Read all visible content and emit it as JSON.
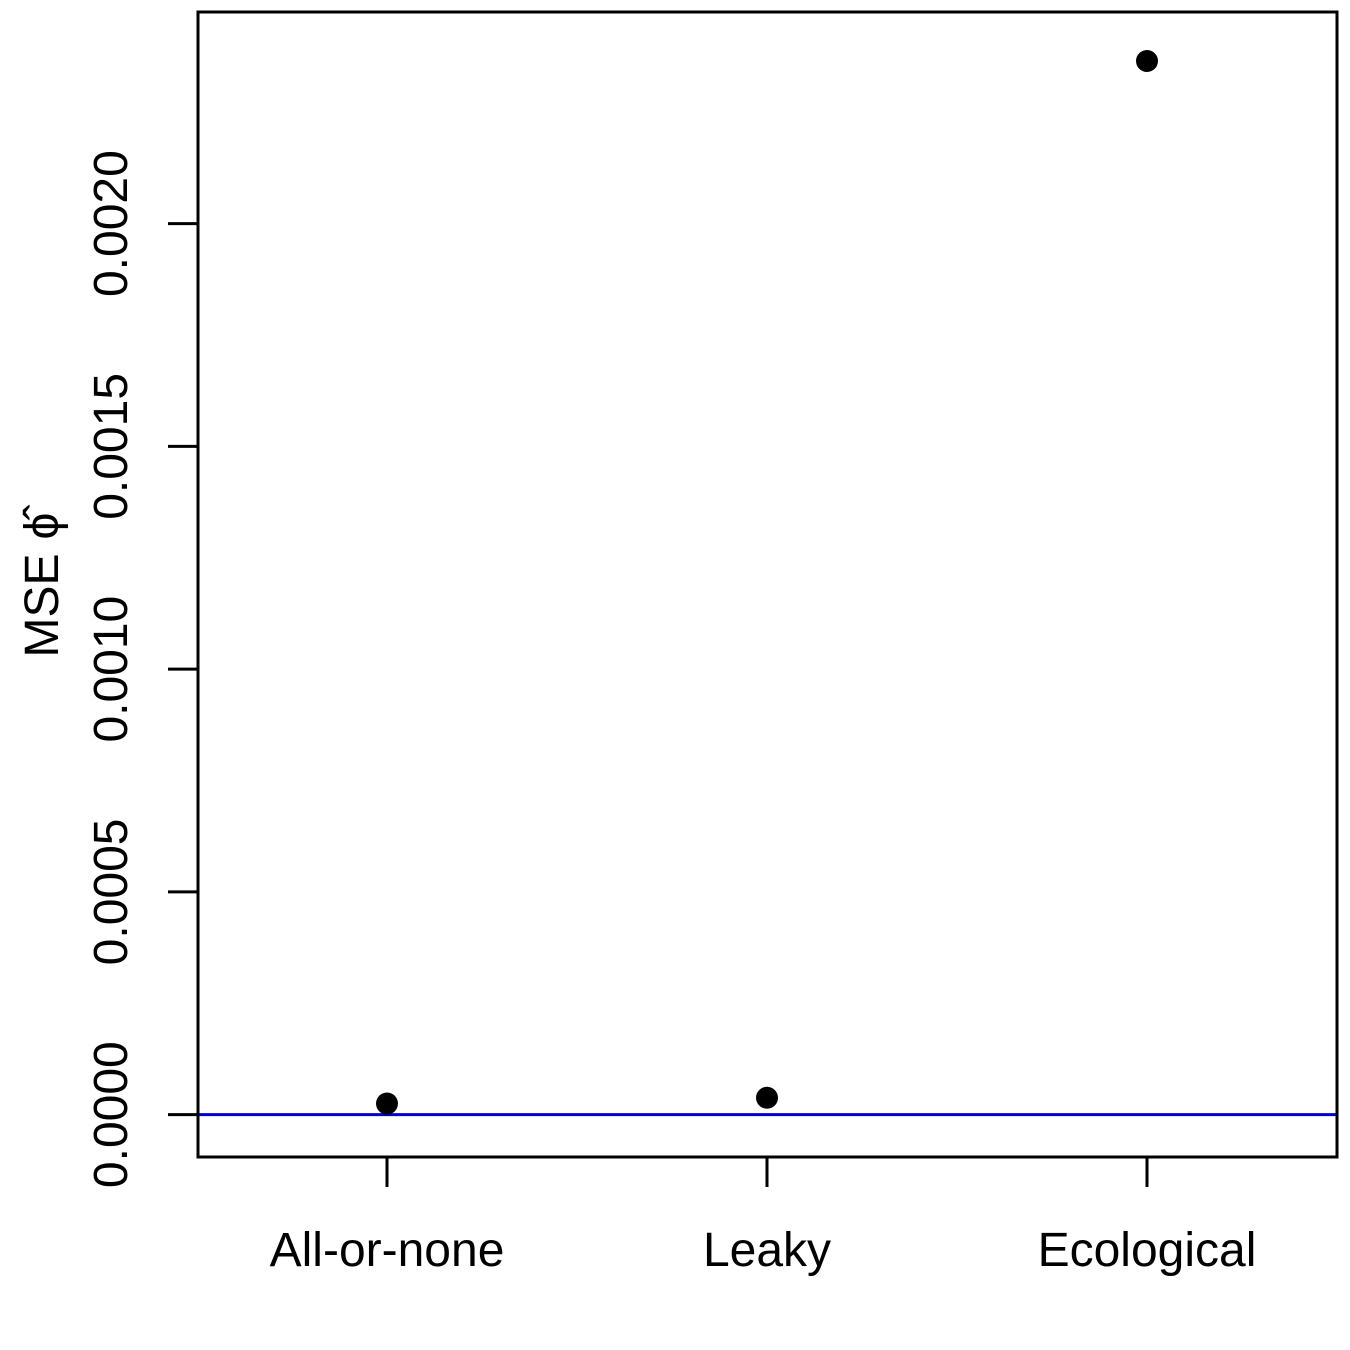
{
  "chart_data": {
    "type": "scatter",
    "title": "",
    "xlabel": "",
    "ylabel": "MSE",
    "ylabel_symbol": "ϕ̂",
    "categories": [
      "All-or-none",
      "Leaky",
      "Ecological"
    ],
    "values": [
      2.5e-05,
      3.8e-05,
      0.002365
    ],
    "ylim": [
      -9.5e-05,
      0.002475
    ],
    "yticks": [
      0.0,
      0.0005,
      0.001,
      0.0015,
      0.002
    ],
    "ytick_labels": [
      "0.0000",
      "0.0005",
      "0.0010",
      "0.0015",
      "0.0020"
    ],
    "reference_line": {
      "y": 0.0,
      "color": "#0000cc"
    },
    "point_color": "#000000",
    "grid": false,
    "legend": "none"
  }
}
